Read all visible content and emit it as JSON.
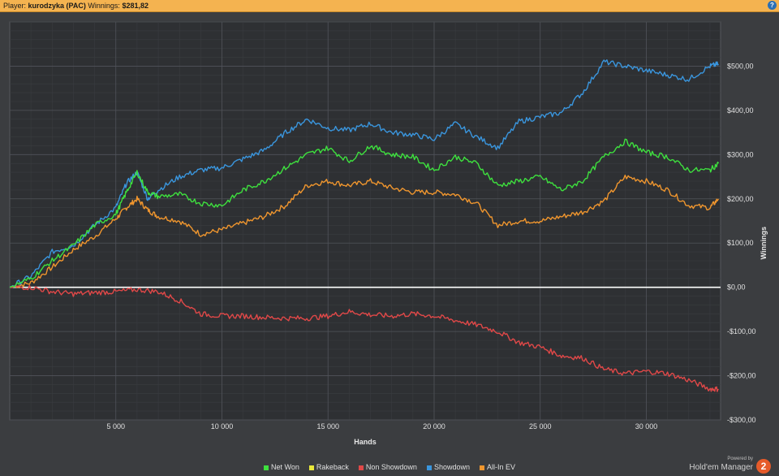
{
  "header": {
    "player_label": "Player:",
    "player_name": "kurodzyka (PAC)",
    "winnings_label": "Winnings:",
    "winnings_value": "$281,82",
    "help_icon": "help-icon"
  },
  "chart_data": {
    "type": "line",
    "xlabel": "Hands",
    "ylabel": "Winnings",
    "xlim": [
      0,
      33500
    ],
    "ylim": [
      -300,
      600
    ],
    "x_ticks": [
      5000,
      10000,
      15000,
      20000,
      25000,
      30000
    ],
    "x_tick_labels": [
      "5 000",
      "10 000",
      "15 000",
      "20 000",
      "25 000",
      "30 000"
    ],
    "y_ticks": [
      -300,
      -200,
      -100,
      0,
      100,
      200,
      300,
      400,
      500
    ],
    "y_tick_labels": [
      "-$300,00",
      "-$200,00",
      "-$100,00",
      "$0,00",
      "$100,00",
      "$200,00",
      "$300,00",
      "$400,00",
      "$500,00"
    ],
    "grid": true,
    "legend_position": "bottom",
    "series": [
      {
        "name": "Net Won",
        "color": "#3ee03e",
        "x": [
          0,
          1000,
          2000,
          3000,
          4000,
          5000,
          5500,
          6000,
          6500,
          7000,
          8000,
          9000,
          10000,
          11000,
          12000,
          13000,
          14000,
          15000,
          16000,
          17000,
          18000,
          19000,
          20000,
          21000,
          22000,
          23000,
          24000,
          25000,
          26000,
          27000,
          28000,
          29000,
          30000,
          31000,
          32000,
          33000,
          33400
        ],
        "values": [
          0,
          20,
          60,
          95,
          140,
          165,
          215,
          260,
          215,
          205,
          210,
          190,
          185,
          220,
          240,
          270,
          300,
          315,
          285,
          320,
          300,
          295,
          265,
          295,
          280,
          230,
          240,
          250,
          220,
          240,
          295,
          330,
          305,
          295,
          265,
          265,
          280
        ]
      },
      {
        "name": "Rakeback",
        "color": "#e8e83a",
        "x": [
          0,
          33400
        ],
        "values": [
          0,
          0
        ]
      },
      {
        "name": "Non Showdown",
        "color": "#e04848",
        "x": [
          0,
          1000,
          2000,
          3000,
          4000,
          5000,
          6000,
          7000,
          8000,
          9000,
          10000,
          11000,
          12000,
          13000,
          14000,
          15000,
          16000,
          17000,
          18000,
          19000,
          20000,
          21000,
          22000,
          23000,
          24000,
          25000,
          26000,
          27000,
          28000,
          29000,
          30000,
          31000,
          32000,
          33000,
          33400
        ],
        "values": [
          0,
          0,
          -10,
          -15,
          -12,
          -10,
          -5,
          -10,
          -30,
          -60,
          -65,
          -65,
          -68,
          -70,
          -70,
          -65,
          -55,
          -62,
          -65,
          -60,
          -65,
          -75,
          -85,
          -100,
          -125,
          -135,
          -155,
          -160,
          -185,
          -195,
          -190,
          -195,
          -210,
          -230,
          -230
        ]
      },
      {
        "name": "Showdown",
        "color": "#3a96de",
        "x": [
          0,
          1000,
          2000,
          3000,
          4000,
          5000,
          5500,
          6000,
          6500,
          7000,
          8000,
          9000,
          10000,
          11000,
          12000,
          13000,
          14000,
          15000,
          16000,
          17000,
          18000,
          19000,
          20000,
          21000,
          22000,
          23000,
          24000,
          25000,
          26000,
          27000,
          28000,
          29000,
          30000,
          31000,
          32000,
          33000,
          33400
        ],
        "values": [
          0,
          25,
          80,
          95,
          140,
          180,
          235,
          260,
          200,
          220,
          250,
          265,
          270,
          290,
          310,
          350,
          380,
          360,
          355,
          370,
          350,
          345,
          335,
          370,
          340,
          315,
          375,
          385,
          395,
          440,
          510,
          500,
          490,
          480,
          470,
          500,
          505
        ]
      },
      {
        "name": "All-In EV",
        "color": "#f0962e",
        "x": [
          0,
          1000,
          2000,
          3000,
          4000,
          5000,
          5500,
          6000,
          6500,
          7000,
          8000,
          9000,
          10000,
          11000,
          12000,
          13000,
          14000,
          15000,
          16000,
          17000,
          18000,
          19000,
          20000,
          21000,
          22000,
          23000,
          24000,
          25000,
          26000,
          27000,
          28000,
          29000,
          30000,
          31000,
          32000,
          33000,
          33400
        ],
        "values": [
          0,
          10,
          45,
          85,
          115,
          155,
          180,
          200,
          175,
          160,
          150,
          120,
          130,
          145,
          160,
          185,
          230,
          240,
          230,
          240,
          225,
          215,
          215,
          210,
          190,
          140,
          150,
          150,
          160,
          170,
          195,
          250,
          240,
          220,
          185,
          180,
          200
        ]
      }
    ]
  },
  "brand": {
    "powered_by": "Powered by",
    "product": "Hold'em Manager",
    "logo": "2"
  }
}
